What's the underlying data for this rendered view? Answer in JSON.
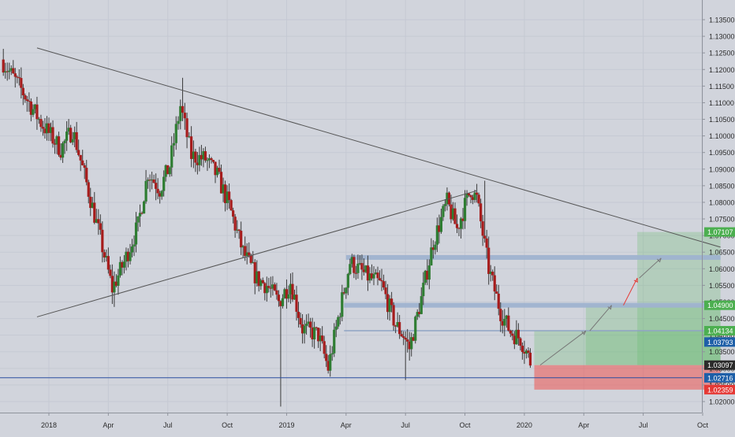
{
  "chart_data": {
    "type": "candlestick",
    "symbol": "",
    "title": "",
    "xlabel": "",
    "ylabel": "",
    "ylim": [
      1.0155,
      1.1375
    ],
    "x_ticks": [
      {
        "label": "2018",
        "x": 0.3
      },
      {
        "label": "Apr",
        "x": 3.3
      },
      {
        "label": "Jul",
        "x": 6.3
      },
      {
        "label": "Oct",
        "x": 9.3
      },
      {
        "label": "2019",
        "x": 12.3
      },
      {
        "label": "Apr",
        "x": 15.3
      },
      {
        "label": "Jul",
        "x": 18.3
      },
      {
        "label": "Oct",
        "x": 21.3
      },
      {
        "label": "2020",
        "x": 24.3
      },
      {
        "label": "Apr",
        "x": 27.3
      },
      {
        "label": "Jul",
        "x": 30.3
      },
      {
        "label": "Oct",
        "x": 33.3
      }
    ],
    "y_ticks": [
      1.02,
      1.025,
      1.03,
      1.035,
      1.04,
      1.045,
      1.05,
      1.055,
      1.06,
      1.065,
      1.07,
      1.075,
      1.08,
      1.085,
      1.09,
      1.095,
      1.1,
      1.105,
      1.11,
      1.115,
      1.12,
      1.125,
      1.13,
      1.135
    ],
    "y_tick_labels": [
      "1.02000",
      "1.02500",
      "1.03000",
      "1.03500",
      "1.04000",
      "1.04500",
      "1.05000",
      "1.05500",
      "1.06000",
      "1.06500",
      "1.07000",
      "1.07500",
      "1.08000",
      "1.08500",
      "1.09000",
      "1.09500",
      "1.10000",
      "1.10500",
      "1.11000",
      "1.11500",
      "1.12000",
      "1.12500",
      "1.13000",
      "1.13500"
    ],
    "candles_anchor_close": [
      [
        -2.0,
        1.123
      ],
      [
        -1.0,
        1.114
      ],
      [
        0.0,
        1.104
      ],
      [
        1.0,
        1.096
      ],
      [
        1.6,
        1.102
      ],
      [
        2.5,
        1.081
      ],
      [
        3.0,
        1.069
      ],
      [
        3.6,
        1.054
      ],
      [
        4.2,
        1.062
      ],
      [
        4.9,
        1.073
      ],
      [
        5.4,
        1.089
      ],
      [
        6.0,
        1.084
      ],
      [
        6.5,
        1.091
      ],
      [
        7.05,
        1.109
      ],
      [
        7.6,
        1.094
      ],
      [
        8.3,
        1.093
      ],
      [
        8.9,
        1.088
      ],
      [
        9.5,
        1.079
      ],
      [
        10.2,
        1.065
      ],
      [
        10.9,
        1.057
      ],
      [
        11.4,
        1.055
      ],
      [
        12.0,
        1.05
      ],
      [
        12.6,
        1.056
      ],
      [
        13.2,
        1.042
      ],
      [
        14.0,
        1.04
      ],
      [
        14.5,
        1.03
      ],
      [
        15.0,
        1.045
      ],
      [
        15.6,
        1.062
      ],
      [
        16.4,
        1.058
      ],
      [
        17.2,
        1.055
      ],
      [
        17.9,
        1.043
      ],
      [
        18.3,
        1.04
      ],
      [
        18.6,
        1.036
      ],
      [
        19.2,
        1.051
      ],
      [
        19.8,
        1.068
      ],
      [
        20.5,
        1.08
      ],
      [
        21.0,
        1.072
      ],
      [
        21.4,
        1.079
      ],
      [
        21.7,
        1.084
      ],
      [
        22.0,
        1.081
      ],
      [
        22.6,
        1.06
      ],
      [
        23.2,
        1.047
      ],
      [
        23.7,
        1.041
      ],
      [
        24.2,
        1.039
      ],
      [
        24.5,
        1.035
      ],
      [
        24.7,
        1.032
      ]
    ],
    "series": [
      {
        "kind": "trendline",
        "points": [
          [
            -0.3,
            1.1265
          ],
          [
            34.2,
            1.0665
          ]
        ]
      },
      {
        "kind": "trendline",
        "points": [
          [
            -0.3,
            1.0455
          ],
          [
            21.9,
            1.0835
          ]
        ]
      },
      {
        "kind": "horizontal-line",
        "y": 1.02716
      },
      {
        "kind": "level-band",
        "y": 1.0634,
        "x0": 15.3,
        "x1": 34.2
      },
      {
        "kind": "level-band",
        "y": 1.049,
        "x0": 15.2,
        "x1": 34.2
      },
      {
        "kind": "level-line",
        "y": 1.04134,
        "x0": 15.2,
        "x1": 34.2
      },
      {
        "kind": "target-zone",
        "x0": 24.8,
        "x1": 34.2,
        "y_low": 1.03097,
        "y_top_segments": [
          [
            24.8,
            27.4,
            1.04134
          ],
          [
            27.4,
            30.0,
            1.049
          ],
          [
            30.0,
            34.2,
            1.07107
          ]
        ]
      },
      {
        "kind": "stop-zone",
        "x0": 24.8,
        "x1": 34.2,
        "y_low": 1.02359,
        "y_high": 1.03097
      },
      {
        "kind": "projection-arrow",
        "color": "grey",
        "points": [
          [
            25.1,
            1.031
          ],
          [
            27.4,
            1.0413
          ]
        ]
      },
      {
        "kind": "projection-arrow",
        "color": "grey",
        "points": [
          [
            27.6,
            1.0413
          ],
          [
            28.7,
            1.049
          ]
        ]
      },
      {
        "kind": "projection-arrow",
        "color": "red",
        "points": [
          [
            29.3,
            1.049
          ],
          [
            30.0,
            1.0572
          ]
        ]
      },
      {
        "kind": "projection-arrow",
        "color": "grey",
        "points": [
          [
            30.1,
            1.0572
          ],
          [
            31.2,
            1.0632
          ]
        ]
      }
    ],
    "price_labels": [
      {
        "value": 1.07107,
        "text": "1.07107",
        "color": "#4caf50"
      },
      {
        "value": 1.049,
        "text": "1.04900",
        "color": "#4caf50"
      },
      {
        "value": 1.04134,
        "text": "1.04134",
        "color": "#4caf50"
      },
      {
        "value": 1.03793,
        "text": "1.03793",
        "color": "#1e5fa8"
      },
      {
        "value": 1.03097,
        "text": "1.03097",
        "color": "#2b2b2b"
      },
      {
        "value": 1.02716,
        "text": "1.02716",
        "color": "#1e5fa8"
      },
      {
        "value": 1.02359,
        "text": "1.02359",
        "color": "#e53935"
      }
    ],
    "colors": {
      "background": "#d1d4dc",
      "grid": "#c5c9d3",
      "candle_up": "#2e7d32",
      "candle_down": "#a61c1c",
      "wick": "#3a3a3a",
      "band": "#9fb3cf",
      "target_zone": "#66bb6a",
      "stop_zone": "#ef5350",
      "horizontal_line": "#2a4fa0"
    },
    "grid": true
  }
}
